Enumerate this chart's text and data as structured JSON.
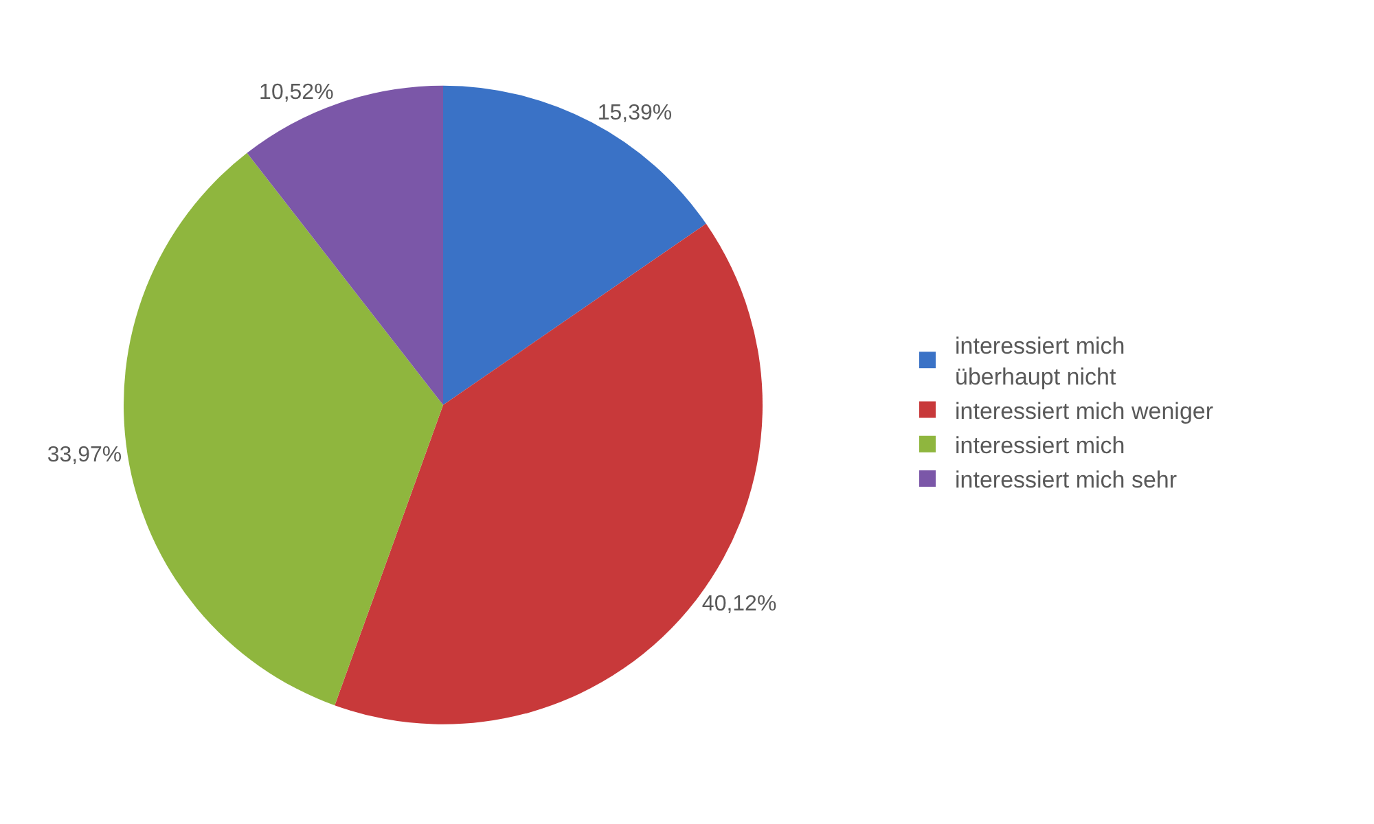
{
  "chart_data": {
    "type": "pie",
    "categories": [
      "interessiert mich überhaupt nicht",
      "interessiert mich weniger",
      "interessiert mich",
      "interessiert mich sehr"
    ],
    "values": [
      15.39,
      40.12,
      33.97,
      10.52
    ],
    "value_labels": [
      "15,39%",
      "40,12%",
      "33,97%",
      "10,52%"
    ],
    "colors": [
      "#3a72c6",
      "#c8393a",
      "#8fb63e",
      "#7b57a8"
    ],
    "legend": "right"
  }
}
